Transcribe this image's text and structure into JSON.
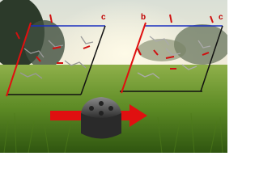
{
  "cells": [
    {
      "labels": [
        "c"
      ]
    },
    {
      "labels": [
        "b",
        "c"
      ]
    }
  ]
}
